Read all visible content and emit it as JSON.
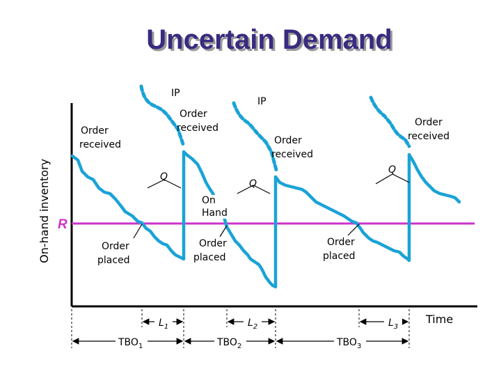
{
  "title": "Uncertain Demand",
  "y_axis_label": "On-hand inventory",
  "x_axis_label": "Time",
  "reorder_point_label": "R",
  "on_hand_label_line1": "On",
  "on_hand_label_line2": "Hand",
  "labels": {
    "ip": "IP",
    "q": "Q",
    "order_received_1": "Order",
    "order_received_2": "received",
    "order_placed_1": "Order",
    "order_placed_2": "placed"
  },
  "lead_times": [
    {
      "base": "L",
      "sub": "1"
    },
    {
      "base": "L",
      "sub": "2"
    },
    {
      "base": "L",
      "sub": "3"
    }
  ],
  "tbos": [
    {
      "base": "TBO",
      "sub": "1"
    },
    {
      "base": "TBO",
      "sub": "2"
    },
    {
      "base": "TBO",
      "sub": "3"
    }
  ],
  "colors": {
    "title": "#3a2a80",
    "inventory_line": "#1aa3d6",
    "reorder_line": "#cc33cc",
    "axis": "#000000"
  }
}
